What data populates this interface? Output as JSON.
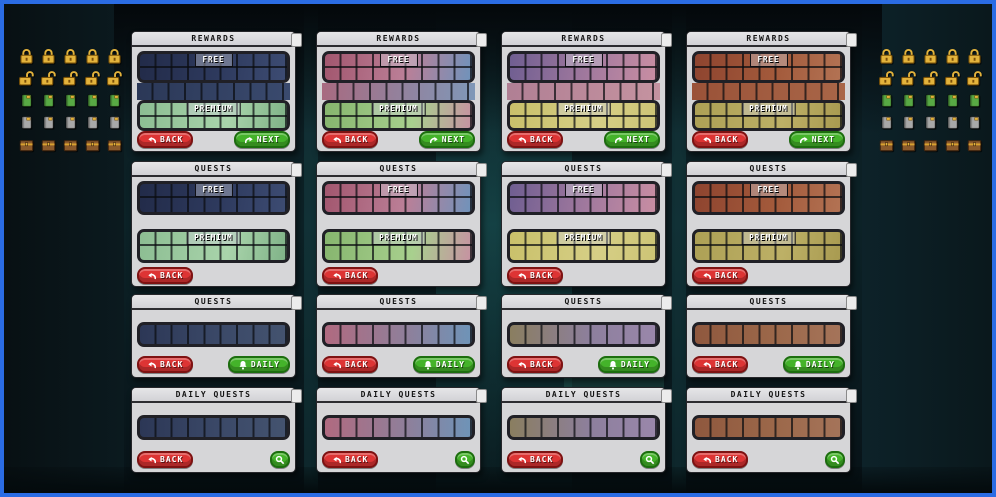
{
  "window": {
    "frame_color": "#2b6ce4"
  },
  "labels": {
    "free": "FREE",
    "premium": "PREMIUM"
  },
  "buttons": {
    "back": {
      "label": "BACK",
      "icon": "undo-arrow-icon",
      "bg": "#dd3434",
      "border": "#7e1212"
    },
    "next": {
      "label": "NEXT",
      "icon": "redo-arrow-icon",
      "bg": "#44b32a",
      "border": "#1c6e0e"
    },
    "daily": {
      "label": "DAILY",
      "icon": "bell-icon",
      "bg": "#44b32a",
      "border": "#1c6e0e"
    },
    "search": {
      "label": "",
      "icon": "magnifier-icon",
      "bg": "#44b32a",
      "border": "#1c6e0e"
    }
  },
  "side_icons": {
    "rows": [
      {
        "name": "locked-padlock-icon",
        "type": "lock-closed-icon",
        "color": "#e3b33c",
        "count": 5
      },
      {
        "name": "unlocked-padlock-icon",
        "type": "lock-open-icon",
        "color": "#e3b33c",
        "count": 5
      },
      {
        "name": "premium-pass-icon",
        "type": "pass-icon",
        "color": "#58a944",
        "count": 5
      },
      {
        "name": "free-pass-icon",
        "type": "pass-icon",
        "color": "#a8a8a8",
        "count": 5
      },
      {
        "name": "reward-chest-icon",
        "type": "chest-icon",
        "color": "#8a5a2c",
        "count": 5
      }
    ]
  },
  "themes": {
    "winter": {
      "freeA": "#222b49",
      "freeB": "#2e3a5e",
      "freeC": "#3d4c73",
      "midA": "#2b3857",
      "midB": "#3a4a6e",
      "premA": "#8cbd92",
      "premB": "#a9d4ab",
      "premC": "#7fb287",
      "rowA": "#2c3756",
      "rowB": "#3b4968",
      "rowC": "#44536f"
    },
    "cherry": {
      "freeA": "#a2566e",
      "freeB": "#bb7f97",
      "freeC": "#6f93bb",
      "midA": "#a86a80",
      "midB": "#7f98b8",
      "premA": "#86b56e",
      "premB": "#a8d08e",
      "premC": "#c791a2",
      "rowA": "#b06a80",
      "rowB": "#8f7f9a",
      "rowC": "#6e94b8"
    },
    "sunset": {
      "freeA": "#6f5e91",
      "freeB": "#a37a9e",
      "freeC": "#c98ea3",
      "midA": "#b07f94",
      "midB": "#c593a0",
      "premA": "#c9c06a",
      "premB": "#d6cf86",
      "premC": "#cdc475",
      "rowA": "#8a7e60",
      "rowB": "#8d7f9d",
      "rowC": "#9a87ab"
    },
    "autumn": {
      "freeA": "#8e442f",
      "freeB": "#a35a3b",
      "freeC": "#b37354",
      "midA": "#9a5238",
      "midB": "#a96648",
      "premA": "#ada055",
      "premB": "#bdb066",
      "premC": "#a89a50",
      "rowA": "#8f583e",
      "rowB": "#9c684a",
      "rowC": "#a5745a"
    }
  },
  "panels": [
    {
      "col": 1,
      "row": 1,
      "theme": "winter",
      "title": "REWARDS",
      "sections": [
        "free",
        "mid",
        "premium"
      ],
      "buttons": [
        "back",
        "next"
      ]
    },
    {
      "col": 2,
      "row": 1,
      "theme": "cherry",
      "title": "REWARDS",
      "sections": [
        "free",
        "mid",
        "premium"
      ],
      "buttons": [
        "back",
        "next"
      ]
    },
    {
      "col": 3,
      "row": 1,
      "theme": "sunset",
      "title": "REWARDS",
      "sections": [
        "free",
        "mid",
        "premium"
      ],
      "buttons": [
        "back",
        "next"
      ]
    },
    {
      "col": 4,
      "row": 1,
      "theme": "autumn",
      "title": "REWARDS",
      "sections": [
        "free",
        "mid",
        "premium"
      ],
      "buttons": [
        "back",
        "next"
      ]
    },
    {
      "col": 1,
      "row": 2,
      "theme": "winter",
      "title": "QUESTS",
      "sections": [
        "free",
        "premium"
      ],
      "buttons": [
        "back"
      ]
    },
    {
      "col": 2,
      "row": 2,
      "theme": "cherry",
      "title": "QUESTS",
      "sections": [
        "free",
        "premium"
      ],
      "buttons": [
        "back"
      ]
    },
    {
      "col": 3,
      "row": 2,
      "theme": "sunset",
      "title": "QUESTS",
      "sections": [
        "free",
        "premium"
      ],
      "buttons": [
        "back"
      ]
    },
    {
      "col": 4,
      "row": 2,
      "theme": "autumn",
      "title": "QUESTS",
      "sections": [
        "free",
        "premium"
      ],
      "buttons": [
        "back"
      ]
    },
    {
      "col": 1,
      "row": 3,
      "theme": "winter",
      "title": "QUESTS",
      "sections": [
        "strip"
      ],
      "buttons": [
        "back",
        "daily"
      ]
    },
    {
      "col": 2,
      "row": 3,
      "theme": "cherry",
      "title": "QUESTS",
      "sections": [
        "strip"
      ],
      "buttons": [
        "back",
        "daily"
      ]
    },
    {
      "col": 3,
      "row": 3,
      "theme": "sunset",
      "title": "QUESTS",
      "sections": [
        "strip"
      ],
      "buttons": [
        "back",
        "daily"
      ]
    },
    {
      "col": 4,
      "row": 3,
      "theme": "autumn",
      "title": "QUESTS",
      "sections": [
        "strip"
      ],
      "buttons": [
        "back",
        "daily"
      ]
    },
    {
      "col": 1,
      "row": 4,
      "theme": "winter",
      "title": "DAILY QUESTS",
      "sections": [
        "strip"
      ],
      "buttons": [
        "back",
        "search"
      ]
    },
    {
      "col": 2,
      "row": 4,
      "theme": "cherry",
      "title": "DAILY QUESTS",
      "sections": [
        "strip"
      ],
      "buttons": [
        "back",
        "search"
      ]
    },
    {
      "col": 3,
      "row": 4,
      "theme": "sunset",
      "title": "DAILY QUESTS",
      "sections": [
        "strip"
      ],
      "buttons": [
        "back",
        "search"
      ]
    },
    {
      "col": 4,
      "row": 4,
      "theme": "autumn",
      "title": "DAILY QUESTS",
      "sections": [
        "strip"
      ],
      "buttons": [
        "back",
        "search"
      ]
    }
  ]
}
